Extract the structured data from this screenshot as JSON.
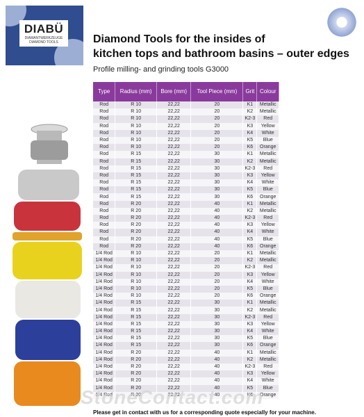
{
  "logo": {
    "brand": "DIABÜ",
    "subtitle1": "DIAMANTWERKZEUGE",
    "subtitle2": "DIAMOND TOOLS"
  },
  "title_line1": "Diamond Tools for the insides of",
  "title_line2": "kitchen tops and bathroom basins – outer edges",
  "subtitle": "Profile milling- and grinding tools G3000",
  "table": {
    "headers": [
      "Type",
      "Radius (mm)",
      "Bore (mm)",
      "Tool Piece (mm)",
      "Grit",
      "Colour"
    ],
    "rows": [
      [
        "Rod",
        "R 10",
        "22,22",
        "20",
        "K1",
        "Metallic"
      ],
      [
        "Rod",
        "R 10",
        "22,22",
        "20",
        "K2",
        "Metallic"
      ],
      [
        "Rod",
        "R 10",
        "22,22",
        "20",
        "K2-3",
        "Red"
      ],
      [
        "Rod",
        "R 10",
        "22,22",
        "20",
        "K3",
        "Yellow"
      ],
      [
        "Rod",
        "R 10",
        "22,22",
        "20",
        "K4",
        "White"
      ],
      [
        "Rod",
        "R 10",
        "22,22",
        "20",
        "K5",
        "Blue"
      ],
      [
        "Rod",
        "R 10",
        "22,22",
        "20",
        "K6",
        "Orange"
      ],
      [
        "Rod",
        "R 15",
        "22,22",
        "30",
        "K1",
        "Metallic"
      ],
      [
        "Rod",
        "R 15",
        "22,22",
        "30",
        "K2",
        "Metallic"
      ],
      [
        "Rod",
        "R 15",
        "22,22",
        "30",
        "K2-3",
        "Red"
      ],
      [
        "Rod",
        "R 15",
        "22,22",
        "30",
        "K3",
        "Yellow"
      ],
      [
        "Rod",
        "R 15",
        "22,22",
        "30",
        "K4",
        "White"
      ],
      [
        "Rod",
        "R 15",
        "22,22",
        "30",
        "K5",
        "Blue"
      ],
      [
        "Rod",
        "R 15",
        "22,22",
        "30",
        "K6",
        "Orange"
      ],
      [
        "Rod",
        "R 20",
        "22,22",
        "40",
        "K1",
        "Metallic"
      ],
      [
        "Rod",
        "R 20",
        "22,22",
        "40",
        "K2",
        "Metallic"
      ],
      [
        "Rod",
        "R 20",
        "22,22",
        "40",
        "K2-3",
        "Red"
      ],
      [
        "Rod",
        "R 20",
        "22,22",
        "40",
        "K3",
        "Yellow"
      ],
      [
        "Rod",
        "R 20",
        "22,22",
        "40",
        "K4",
        "White"
      ],
      [
        "Rod",
        "R 20",
        "22,22",
        "40",
        "K5",
        "Blue"
      ],
      [
        "Rod",
        "R 20",
        "22,22",
        "40",
        "K6",
        "Orange"
      ],
      [
        "1/4 Rod",
        "R 10",
        "22,22",
        "20",
        "K1",
        "Metallic"
      ],
      [
        "1/4 Rod",
        "R 10",
        "22,22",
        "20",
        "K2",
        "Metallic"
      ],
      [
        "1/4 Rod",
        "R 10",
        "22,22",
        "20",
        "K2-3",
        "Red"
      ],
      [
        "1/4 Rod",
        "R 10",
        "22,22",
        "20",
        "K3",
        "Yellow"
      ],
      [
        "1/4 Rod",
        "R 10",
        "22,22",
        "20",
        "K4",
        "White"
      ],
      [
        "1/4 Rod",
        "R 10",
        "22,22",
        "20",
        "K5",
        "Blue"
      ],
      [
        "1/4 Rod",
        "R 10",
        "22,22",
        "20",
        "K6",
        "Orange"
      ],
      [
        "1/4 Rod",
        "R 15",
        "22,22",
        "30",
        "K1",
        "Metallic"
      ],
      [
        "1/4 Rod",
        "R 15",
        "22,22",
        "30",
        "K2",
        "Metallic"
      ],
      [
        "1/4 Rod",
        "R 15",
        "22,22",
        "30",
        "K2-3",
        "Red"
      ],
      [
        "1/4 Rod",
        "R 15",
        "22,22",
        "30",
        "K3",
        "Yellow"
      ],
      [
        "1/4 Rod",
        "R 15",
        "22,22",
        "30",
        "K4",
        "White"
      ],
      [
        "1/4 Rod",
        "R 15",
        "22,22",
        "30",
        "K5",
        "Blue"
      ],
      [
        "1/4 Rod",
        "R 15",
        "22,22",
        "30",
        "K6",
        "Orange"
      ],
      [
        "1/4 Rod",
        "R 20",
        "22,22",
        "40",
        "K1",
        "Metallic"
      ],
      [
        "1/4 Rod",
        "R 20",
        "22,22",
        "40",
        "K2",
        "Metallic"
      ],
      [
        "1/4 Rod",
        "R 20",
        "22,22",
        "40",
        "K2-3",
        "Red"
      ],
      [
        "1/4 Rod",
        "R 20",
        "22,22",
        "40",
        "K3",
        "Yellow"
      ],
      [
        "1/4 Rod",
        "R 20",
        "22,22",
        "40",
        "K4",
        "White"
      ],
      [
        "1/4 Rod",
        "R 20",
        "22,22",
        "40",
        "K5",
        "Blue"
      ],
      [
        "1/4 Rod",
        "R 20",
        "22,22",
        "40",
        "K6",
        "Orange"
      ]
    ]
  },
  "footer": "Please get in contact with us for a corresponding quote especially for your machine.",
  "watermark": "StoneContact.com",
  "colors": {
    "header_purple": "#8a3a9c",
    "logo_blue": "#2f4d8f",
    "row_alt": "#e6e3eb"
  },
  "tool_layers": [
    {
      "name": "metallic-wheel",
      "color": "#c9c9c9"
    },
    {
      "name": "red-wheel",
      "color": "#c9343c"
    },
    {
      "name": "yellow-wheel",
      "color": "#e8d21d"
    },
    {
      "name": "white-wheel",
      "color": "#e9e8e2"
    },
    {
      "name": "blue-wheel",
      "color": "#2c3f9b"
    },
    {
      "name": "orange-wheel",
      "color": "#e88a1e"
    }
  ]
}
